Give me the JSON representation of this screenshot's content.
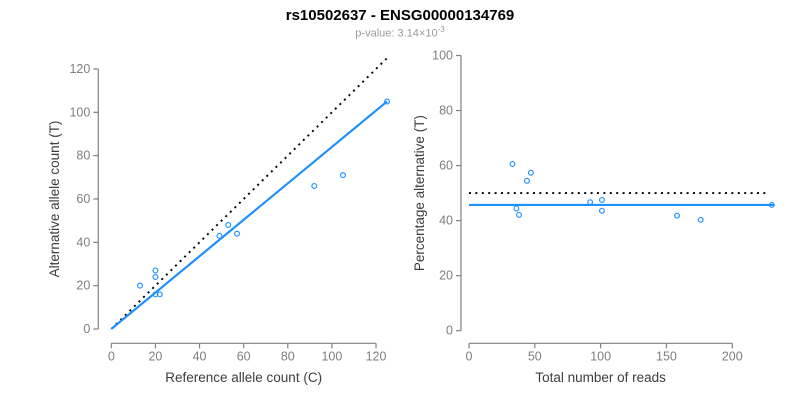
{
  "header": {
    "title": "rs10502637 - ENSG00000134769",
    "pvalue_main": "p-value: 3.14×10",
    "pvalue_exponent": "-3"
  },
  "colors": {
    "accent_blue": "#1E90FF",
    "dotted_black": "#000000",
    "axis_gray": "#808080",
    "tick_label_gray": "#7f7f7f",
    "axis_title_dark": "#3d3d3d",
    "title_black": "#000000",
    "subtitle_gray": "#9a9a9a"
  },
  "chart_data": [
    {
      "type": "scatter",
      "name": "counts-scatter",
      "xlabel": "Reference allele count (C)",
      "ylabel": "Alternative allele count (T)",
      "xticks": [
        0,
        20,
        40,
        60,
        80,
        100,
        120
      ],
      "yticks": [
        0,
        20,
        40,
        60,
        80,
        100,
        120
      ],
      "xlim": [
        -5,
        130
      ],
      "ylim": [
        -5,
        130
      ],
      "grid": false,
      "points": [
        [
          13,
          20
        ],
        [
          20,
          27
        ],
        [
          20,
          24
        ],
        [
          20,
          16
        ],
        [
          22,
          16
        ],
        [
          49,
          43
        ],
        [
          53,
          48
        ],
        [
          57,
          44
        ],
        [
          92,
          66
        ],
        [
          105,
          71
        ],
        [
          125,
          105
        ]
      ],
      "lines": [
        {
          "name": "identity-line",
          "style": "dotted",
          "color": "#000000",
          "x1": 0,
          "y1": 0,
          "x2": 126,
          "y2": 126
        },
        {
          "name": "regression-line",
          "style": "solid",
          "color": "#1E90FF",
          "x1": 0,
          "y1": 0,
          "x2": 125,
          "y2": 105
        }
      ]
    },
    {
      "type": "scatter",
      "name": "percentage-scatter",
      "xlabel": "Total number of reads",
      "ylabel": "Percentage alternative (T)",
      "xticks": [
        0,
        50,
        100,
        150,
        200
      ],
      "yticks": [
        0,
        20,
        40,
        60,
        80,
        100
      ],
      "xlim": [
        -9,
        239
      ],
      "ylim": [
        -4,
        104
      ],
      "grid": false,
      "points": [
        [
          33,
          60.6
        ],
        [
          47,
          57.4
        ],
        [
          44,
          54.5
        ],
        [
          36,
          44.4
        ],
        [
          38,
          42.1
        ],
        [
          92,
          46.7
        ],
        [
          101,
          47.5
        ],
        [
          101,
          43.6
        ],
        [
          158,
          41.8
        ],
        [
          176,
          40.3
        ],
        [
          230,
          45.7
        ]
      ],
      "lines": [
        {
          "name": "expected-50pct-line",
          "style": "dotted",
          "color": "#000000",
          "x1": 0,
          "y1": 50,
          "x2": 228,
          "y2": 50
        },
        {
          "name": "fitted-percentage-line",
          "style": "solid",
          "color": "#1E90FF",
          "x1": 0,
          "y1": 45.7,
          "x2": 232,
          "y2": 45.7
        }
      ]
    }
  ]
}
